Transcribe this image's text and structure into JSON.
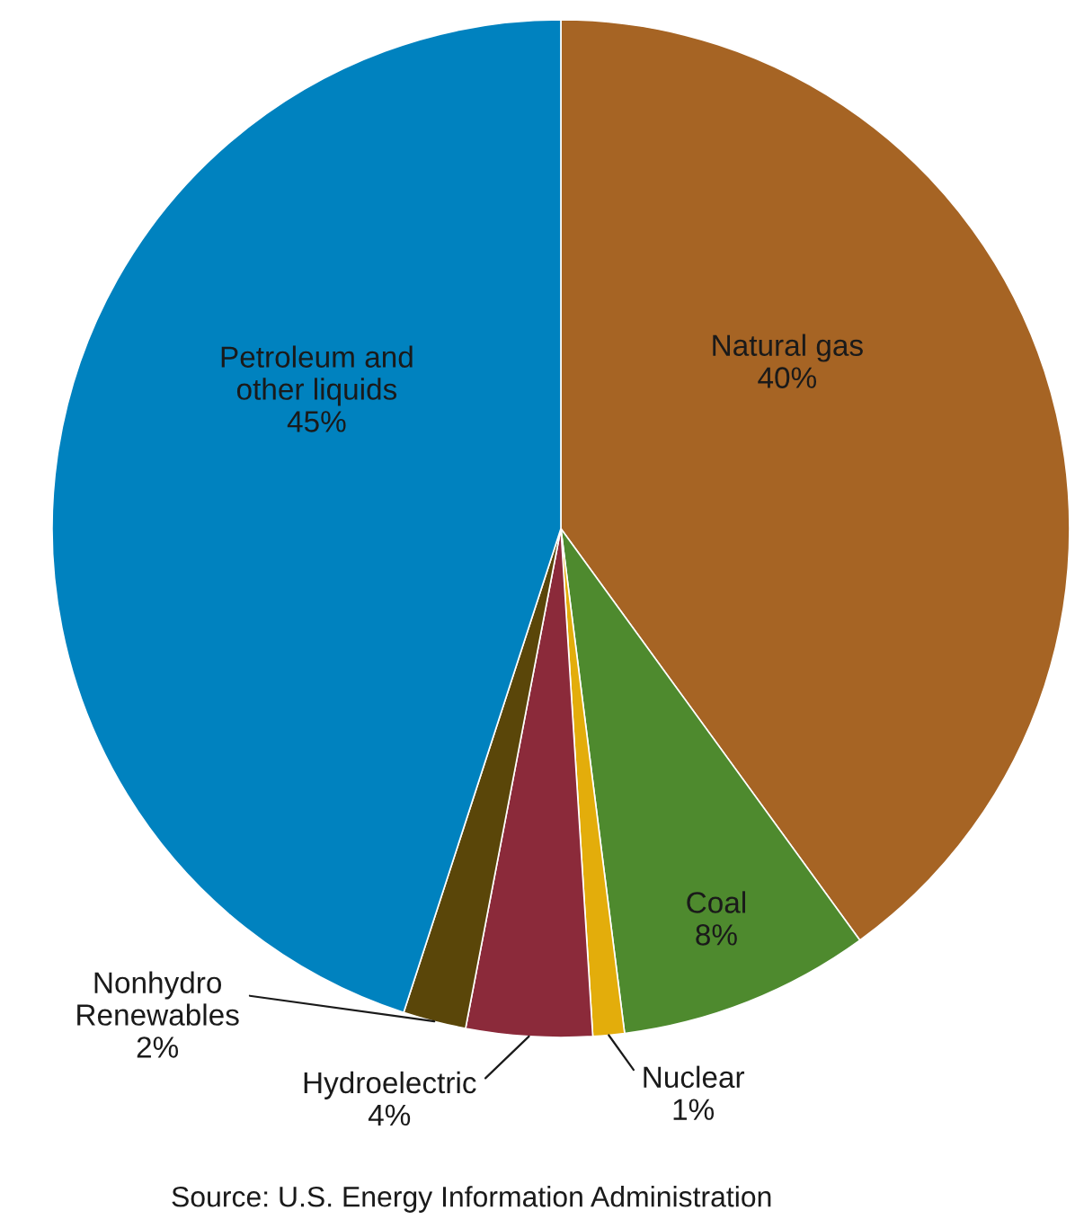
{
  "chart_data": {
    "type": "pie",
    "categories": [
      "Natural gas",
      "Coal",
      "Nuclear",
      "Hydroelectric",
      "Nonhydro Renewables",
      "Petroleum and other liquids"
    ],
    "values": [
      40,
      8,
      1,
      4,
      2,
      45
    ],
    "value_labels": [
      "40%",
      "8%",
      "1%",
      "4%",
      "2%",
      "45%"
    ],
    "colors": [
      "#a66424",
      "#4e8a2e",
      "#e3ad0b",
      "#8b2a3a",
      "#5a4609",
      "#0082bf"
    ],
    "annotations": [
      "Source: U.S. Energy Information Administration"
    ]
  }
}
